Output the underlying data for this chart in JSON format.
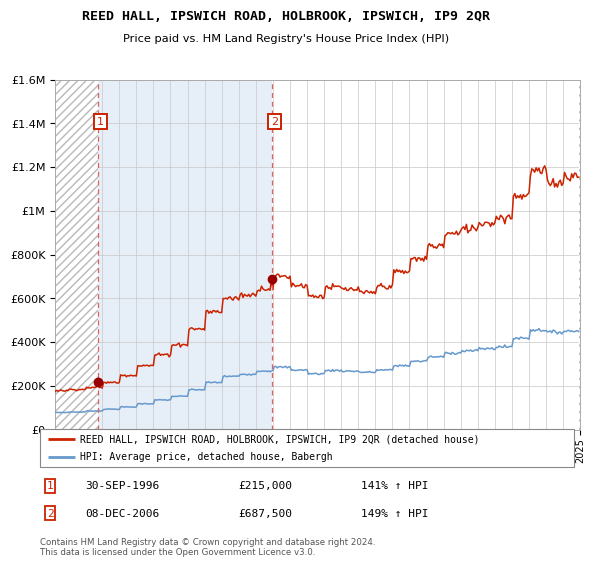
{
  "title": "REED HALL, IPSWICH ROAD, HOLBROOK, IPSWICH, IP9 2QR",
  "subtitle": "Price paid vs. HM Land Registry's House Price Index (HPI)",
  "legend_line1": "REED HALL, IPSWICH ROAD, HOLBROOK, IPSWICH, IP9 2QR (detached house)",
  "legend_line2": "HPI: Average price, detached house, Babergh",
  "annotation1_label": "1",
  "annotation1_date": "30-SEP-1996",
  "annotation1_price": "£215,000",
  "annotation1_hpi": "141% ↑ HPI",
  "annotation2_label": "2",
  "annotation2_date": "08-DEC-2006",
  "annotation2_price": "£687,500",
  "annotation2_hpi": "149% ↑ HPI",
  "footer": "Contains HM Land Registry data © Crown copyright and database right 2024.\nThis data is licensed under the Open Government Licence v3.0.",
  "hpi_color": "#6699cc",
  "price_color": "#cc2200",
  "marker_color": "#990000",
  "annotation_box_color": "#cc2200",
  "dashed_line_color": "#e06060",
  "ylim": [
    0,
    1600000
  ],
  "xlim_start": 1994.25,
  "xlim_end": 2025.0,
  "sale1_x": 1996.75,
  "sale1_y": 215000,
  "sale2_x": 2006.92,
  "sale2_y": 687500,
  "hpi_base": {
    "1994": 78000,
    "1995": 80000,
    "1996": 85000,
    "1997": 93000,
    "1998": 103000,
    "1999": 118000,
    "2000": 135000,
    "2001": 152000,
    "2002": 182000,
    "2003": 215000,
    "2004": 243000,
    "2005": 253000,
    "2006": 268000,
    "2007": 285000,
    "2008": 272000,
    "2009": 255000,
    "2010": 270000,
    "2011": 267000,
    "2012": 262000,
    "2013": 272000,
    "2014": 292000,
    "2015": 312000,
    "2016": 332000,
    "2017": 350000,
    "2018": 360000,
    "2019": 370000,
    "2020": 378000,
    "2021": 418000,
    "2022": 455000,
    "2023": 445000,
    "2024": 450000,
    "2025": 455000
  },
  "price_base": {
    "1994": 178000,
    "1995": 183000,
    "1996": 192000,
    "1997": 215000,
    "1998": 248000,
    "1999": 292000,
    "2000": 342000,
    "2001": 388000,
    "2002": 460000,
    "2003": 538000,
    "2004": 600000,
    "2005": 615000,
    "2006": 645000,
    "2007": 700000,
    "2008": 660000,
    "2009": 610000,
    "2010": 650000,
    "2011": 640000,
    "2012": 625000,
    "2013": 655000,
    "2014": 720000,
    "2015": 780000,
    "2016": 840000,
    "2017": 895000,
    "2018": 920000,
    "2019": 945000,
    "2020": 970000,
    "2021": 1070000,
    "2022": 1180000,
    "2023": 1130000,
    "2024": 1160000,
    "2025": 1200000
  }
}
